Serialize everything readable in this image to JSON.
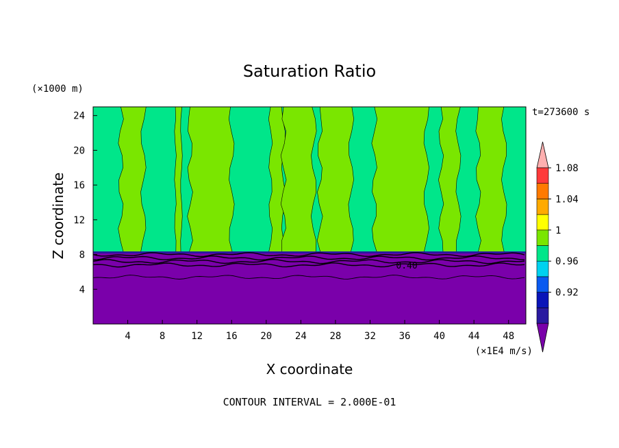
{
  "chart_data": {
    "type": "heatmap",
    "title": "Saturation Ratio",
    "xlabel": "X coordinate",
    "ylabel": "Z coordinate",
    "x_unit": "(×1E4 m/s)",
    "y_unit": "(×1000 m)",
    "time_label": "t=273600 s",
    "footer": "CONTOUR INTERVAL = 2.000E-01",
    "xlim": [
      0,
      50
    ],
    "ylim": [
      0,
      25
    ],
    "x_ticks": [
      4,
      8,
      12,
      16,
      20,
      24,
      28,
      32,
      36,
      40,
      44,
      48
    ],
    "y_ticks": [
      4,
      8,
      12,
      16,
      20,
      24
    ],
    "contour_label": "0.40",
    "contour_label_x": 35,
    "contour_label_z": 6.8,
    "dry_layer_top_z": 8.2,
    "contour_lines_z": [
      8.0,
      7.6,
      7.2,
      6.8,
      5.4
    ],
    "green_bands": [
      {
        "x0": 3.2,
        "x1": 5.8
      },
      {
        "x0": 9.5,
        "x1": 10.2
      },
      {
        "x0": 11.2,
        "x1": 16.0
      },
      {
        "x0": 20.5,
        "x1": 22.0
      },
      {
        "x0": 22.0,
        "x1": 25.5
      },
      {
        "x0": 26.2,
        "x1": 29.8
      },
      {
        "x0": 32.5,
        "x1": 38.5
      },
      {
        "x0": 40.2,
        "x1": 42.2
      },
      {
        "x0": 44.5,
        "x1": 47.5
      }
    ],
    "colorbar": {
      "levels": [
        0.92,
        0.96,
        1,
        1.04,
        1.08
      ],
      "level_labels": [
        "0.92",
        "0.96",
        "1",
        "1.04",
        "1.08"
      ],
      "colors": [
        "#7a00aa",
        "#2a1aa0",
        "#0a14b8",
        "#0a5af0",
        "#00d2f0",
        "#00e68a",
        "#7ae600",
        "#ffff00",
        "#ffaa00",
        "#ff7a00",
        "#ff3a3a",
        "#ffb0b0"
      ]
    },
    "field_colors": {
      "dry": "#7a00aa",
      "near_saturated": "#00e68a",
      "saturated": "#7ae600",
      "dark_edge": "#2a1aa0"
    }
  }
}
